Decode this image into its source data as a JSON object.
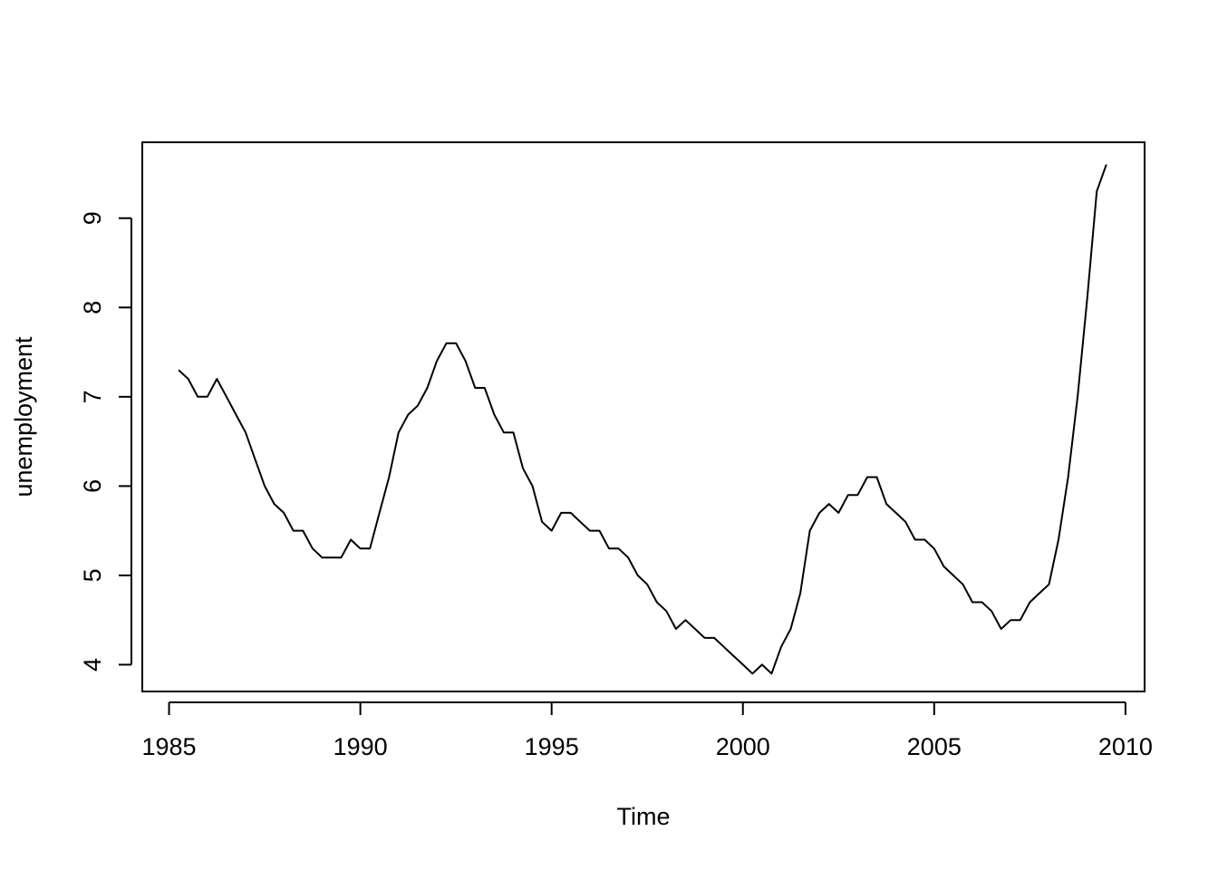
{
  "chart_data": {
    "type": "line",
    "title": "",
    "xlabel": "Time",
    "ylabel": "unemployment",
    "xlim": [
      1984.3,
      2010.5
    ],
    "ylim": [
      3.7,
      9.85
    ],
    "x_ticks": [
      1985,
      1990,
      1995,
      2000,
      2005,
      2010
    ],
    "y_ticks": [
      4,
      5,
      6,
      7,
      8,
      9
    ],
    "grid": false,
    "legend": "none",
    "line_color": "#000000",
    "series": [
      {
        "x": [
          1985.25,
          1985.5,
          1985.75,
          1986.0,
          1986.25,
          1986.5,
          1986.75,
          1987.0,
          1987.25,
          1987.5,
          1987.75,
          1988.0,
          1988.25,
          1988.5,
          1988.75,
          1989.0,
          1989.25,
          1989.5,
          1989.75,
          1990.0,
          1990.25,
          1990.5,
          1990.75,
          1991.0,
          1991.25,
          1991.5,
          1991.75,
          1992.0,
          1992.25,
          1992.5,
          1992.75,
          1993.0,
          1993.25,
          1993.5,
          1993.75,
          1994.0,
          1994.25,
          1994.5,
          1994.75,
          1995.0,
          1995.25,
          1995.5,
          1995.75,
          1996.0,
          1996.25,
          1996.5,
          1996.75,
          1997.0,
          1997.25,
          1997.5,
          1997.75,
          1998.0,
          1998.25,
          1998.5,
          1998.75,
          1999.0,
          1999.25,
          1999.5,
          1999.75,
          2000.0,
          2000.25,
          2000.5,
          2000.75,
          2001.0,
          2001.25,
          2001.5,
          2001.75,
          2002.0,
          2002.25,
          2002.5,
          2002.75,
          2003.0,
          2003.25,
          2003.5,
          2003.75,
          2004.0,
          2004.25,
          2004.5,
          2004.75,
          2005.0,
          2005.25,
          2005.5,
          2005.75,
          2006.0,
          2006.25,
          2006.5,
          2006.75,
          2007.0,
          2007.25,
          2007.5,
          2007.75,
          2008.0,
          2008.25,
          2008.5,
          2008.75,
          2009.0,
          2009.25,
          2009.5
        ],
        "values": [
          7.3,
          7.2,
          7.0,
          7.0,
          7.2,
          7.0,
          6.8,
          6.6,
          6.3,
          6.0,
          5.8,
          5.7,
          5.5,
          5.5,
          5.3,
          5.2,
          5.2,
          5.2,
          5.4,
          5.3,
          5.3,
          5.7,
          6.1,
          6.6,
          6.8,
          6.9,
          7.1,
          7.4,
          7.6,
          7.6,
          7.4,
          7.1,
          7.1,
          6.8,
          6.6,
          6.6,
          6.2,
          6.0,
          5.6,
          5.5,
          5.7,
          5.7,
          5.6,
          5.5,
          5.5,
          5.3,
          5.3,
          5.2,
          5.0,
          4.9,
          4.7,
          4.6,
          4.4,
          4.5,
          4.4,
          4.3,
          4.3,
          4.2,
          4.1,
          4.0,
          3.9,
          4.0,
          3.9,
          4.2,
          4.4,
          4.8,
          5.5,
          5.7,
          5.8,
          5.7,
          5.9,
          5.9,
          6.1,
          6.1,
          5.8,
          5.7,
          5.6,
          5.4,
          5.4,
          5.3,
          5.1,
          5.0,
          4.9,
          4.7,
          4.7,
          4.6,
          4.4,
          4.5,
          4.5,
          4.7,
          4.8,
          4.9,
          5.4,
          6.1,
          7.0,
          8.1,
          9.3,
          9.6
        ]
      }
    ]
  }
}
